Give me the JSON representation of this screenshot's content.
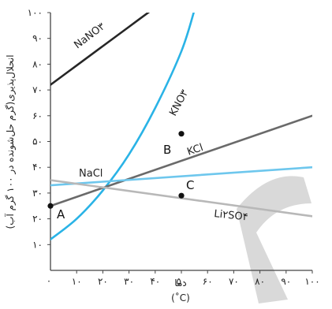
{
  "chart_data": {
    "type": "line",
    "title": "",
    "ylabel": "انحلال‌پذیری(گرم حل‌شونده در ۱۰۰ گرم آب)",
    "xlabel_line1": "دما",
    "xlabel_line2": "(˚C)",
    "xlim": [
      0,
      100
    ],
    "ylim": [
      0,
      100
    ],
    "x_ticks": [
      10,
      20,
      30,
      40,
      50,
      60,
      70,
      80,
      90,
      100
    ],
    "x_tick_labels": [
      "۱۰",
      "۲۰",
      "۳۰",
      "۴۰",
      "۵۰",
      "۶۰",
      "۷۰",
      "۸۰",
      "۹۰",
      "۱۰۰"
    ],
    "y_ticks": [
      10,
      20,
      30,
      40,
      50,
      60,
      70,
      80,
      90,
      100
    ],
    "y_tick_labels": [
      "۱۰",
      "۲۰",
      "۳۰",
      "۴۰",
      "۵۰",
      "۶۰",
      "۷۰",
      "۸۰",
      "۹۰",
      "۱۰۰"
    ],
    "origin_label": "۰",
    "grid": false,
    "series": [
      {
        "name": "NaNO۳",
        "color": "#262626",
        "x": [
          0,
          10,
          20,
          30,
          40,
          45
        ],
        "y": [
          72,
          79.5,
          87,
          94.5,
          102,
          105.7
        ]
      },
      {
        "name": "KNO۳",
        "color": "#2ab3e6",
        "x": [
          0,
          10,
          20,
          30,
          40,
          50,
          55
        ],
        "y": [
          12,
          20,
          31,
          45,
          63,
          85,
          101
        ]
      },
      {
        "name": "KCl",
        "color": "#6a6a6a",
        "x": [
          0,
          100
        ],
        "y": [
          25,
          60
        ]
      },
      {
        "name": "NaCl",
        "color": "#6ec7ed",
        "x": [
          0,
          100
        ],
        "y": [
          33,
          40
        ]
      },
      {
        "name": "Li۲SO۴",
        "color": "#b8b8b8",
        "x": [
          0,
          100
        ],
        "y": [
          35,
          21
        ]
      }
    ],
    "points": [
      {
        "name": "A",
        "x": 0,
        "y": 25
      },
      {
        "name": "B",
        "x": 50,
        "y": 53
      },
      {
        "name": "C",
        "x": 50,
        "y": 29
      }
    ]
  }
}
